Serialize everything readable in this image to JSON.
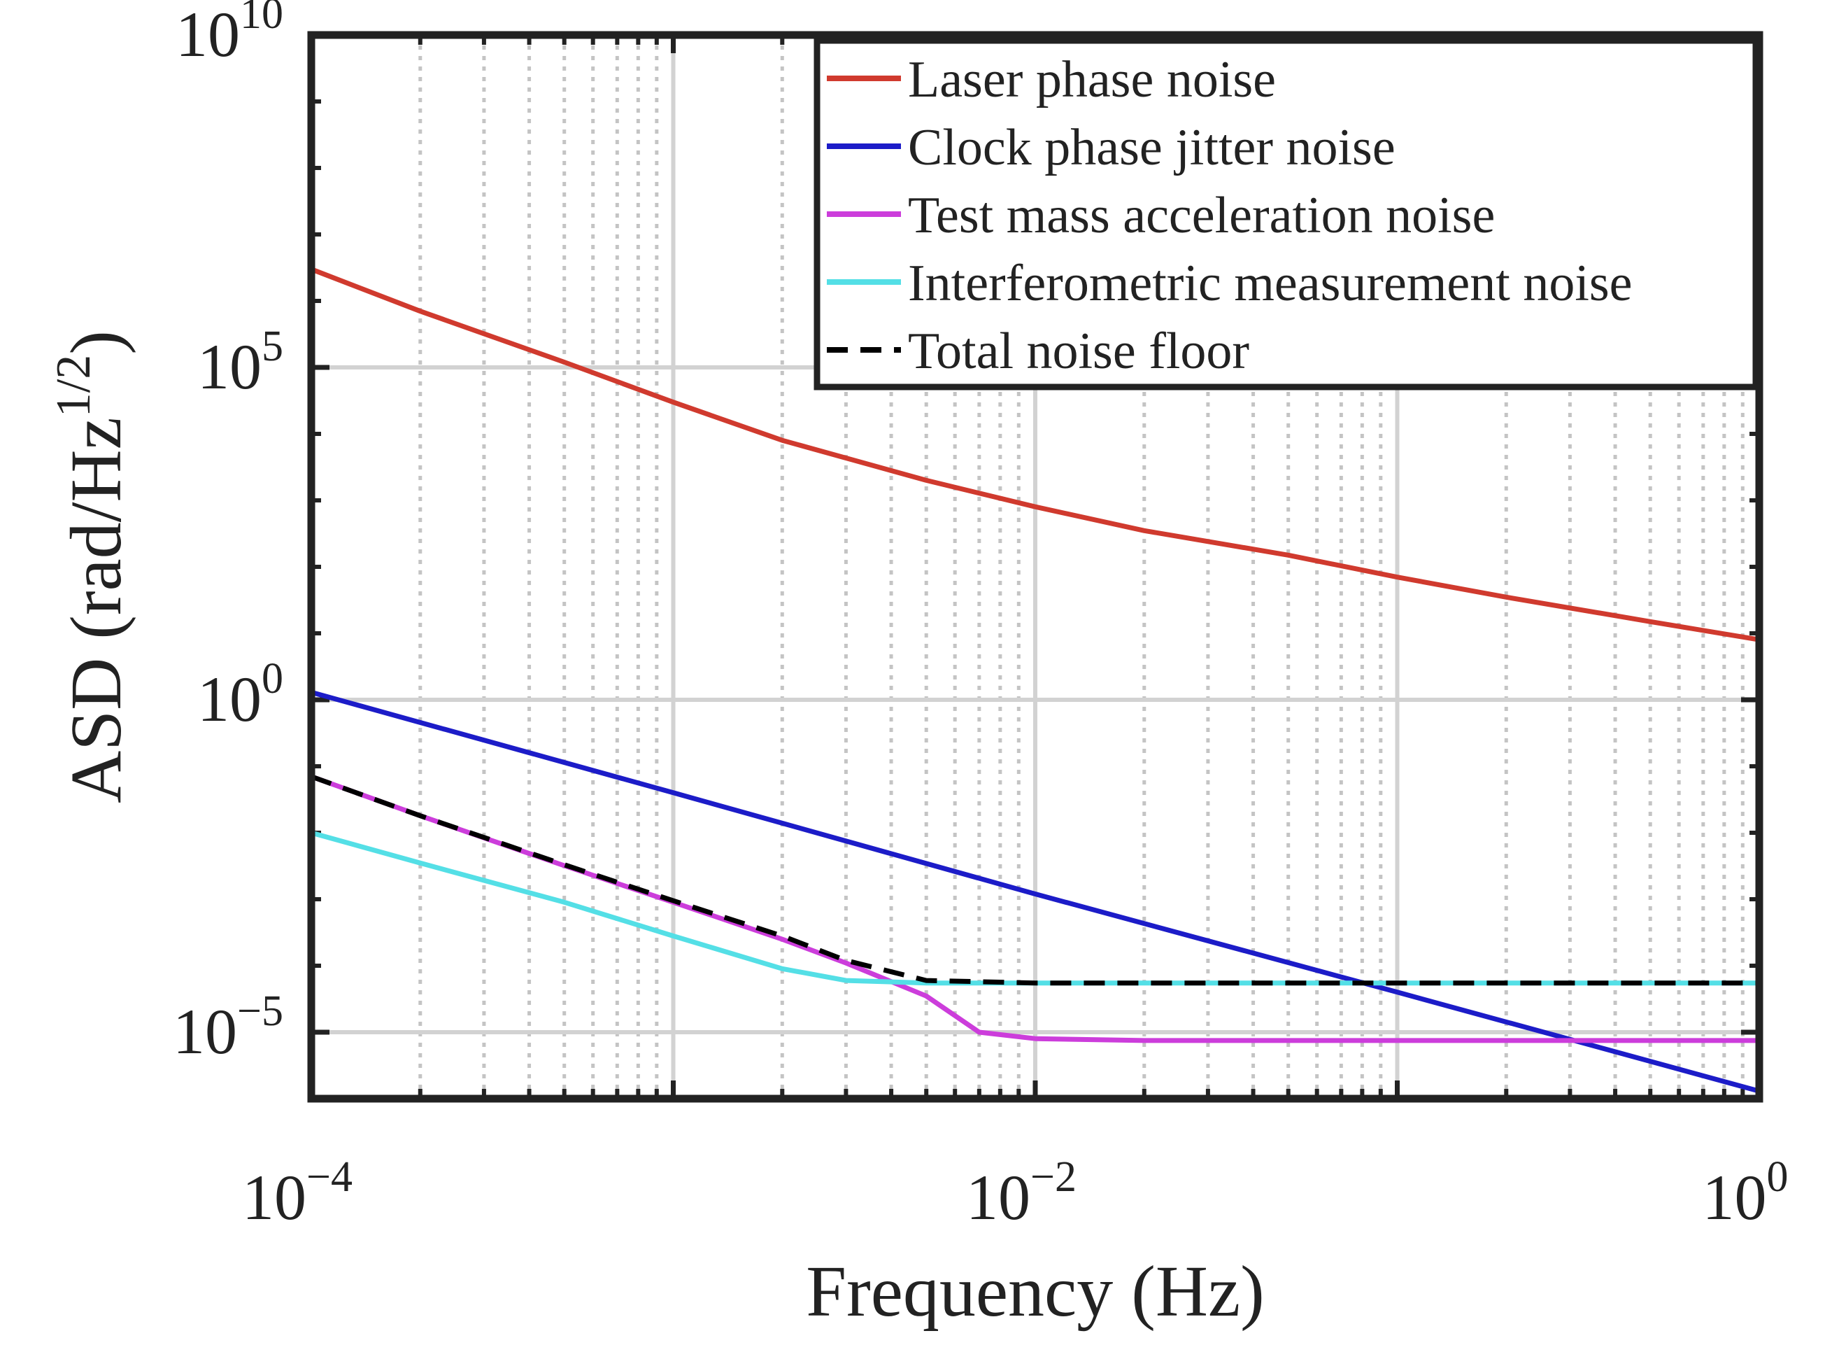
{
  "chart_data": {
    "type": "line",
    "title": "",
    "xlabel": "Frequency (Hz)",
    "ylabel_main": "ASD (rad/Hz",
    "ylabel_sup": "1/2",
    "ylabel_close": ")",
    "xscale": "log",
    "yscale": "log",
    "xlim": [
      0.0001,
      1
    ],
    "ylim": [
      1e-06,
      10000000000
    ],
    "grid": true,
    "legend_position": "top-right",
    "x_ticks": [
      {
        "base": "10",
        "exp": "−4",
        "value": 0.0001
      },
      {
        "base": "10",
        "exp": "−2",
        "value": 0.01
      },
      {
        "base": "10",
        "exp": "0",
        "value": 1
      }
    ],
    "y_ticks": [
      {
        "base": "10",
        "exp": "10",
        "value": 10000000000
      },
      {
        "base": "10",
        "exp": "5",
        "value": 100000
      },
      {
        "base": "10",
        "exp": "0",
        "value": 1
      },
      {
        "base": "10",
        "exp": "−5",
        "value": 1e-05
      }
    ],
    "series": [
      {
        "name": "Laser phase noise",
        "color": "#d03a2e",
        "dash": "solid",
        "x": [
          0.0001,
          0.0002,
          0.0005,
          0.001,
          0.002,
          0.005,
          0.01,
          0.02,
          0.05,
          0.1,
          0.2,
          0.5,
          1
        ],
        "y": [
          3000000,
          700000,
          120000,
          30000,
          8000,
          2000,
          800,
          350,
          150,
          70,
          35,
          15,
          8
        ]
      },
      {
        "name": "Clock phase jitter noise",
        "color": "#1c1cc8",
        "dash": "solid",
        "x": [
          0.0001,
          0.001,
          0.01,
          0.1,
          1
        ],
        "y": [
          1.3,
          0.04,
          0.0012,
          4e-05,
          1.3e-06
        ]
      },
      {
        "name": "Test mass acceleration noise",
        "color": "#cc3ddb",
        "dash": "solid",
        "x": [
          0.0001,
          0.0002,
          0.0005,
          0.001,
          0.002,
          0.003,
          0.005,
          0.007,
          0.01,
          0.02,
          0.05,
          0.1,
          0.3,
          0.5,
          1
        ],
        "y": [
          0.07,
          0.018,
          0.0032,
          0.0009,
          0.00025,
          0.00011,
          3.5e-05,
          1e-05,
          8e-06,
          7.5e-06,
          7.5e-06,
          7.5e-06,
          7.5e-06,
          7.5e-06,
          7.5e-06
        ]
      },
      {
        "name": "Interferometric measurement noise",
        "color": "#54dfe6",
        "dash": "solid",
        "x": [
          0.0001,
          0.0002,
          0.0005,
          0.001,
          0.002,
          0.003,
          0.005,
          0.01,
          0.1,
          1
        ],
        "y": [
          0.01,
          0.0035,
          0.0009,
          0.00028,
          9e-05,
          6e-05,
          5.5e-05,
          5.5e-05,
          5.5e-05,
          5.5e-05
        ]
      },
      {
        "name": "Total noise floor",
        "color": "#000000",
        "dash": "dashed",
        "x": [
          0.0001,
          0.0002,
          0.0005,
          0.001,
          0.002,
          0.003,
          0.005,
          0.01,
          0.1,
          1
        ],
        "y": [
          0.07,
          0.018,
          0.0033,
          0.00095,
          0.00028,
          0.00012,
          6e-05,
          5.5e-05,
          5.5e-05,
          5.5e-05
        ]
      }
    ]
  }
}
